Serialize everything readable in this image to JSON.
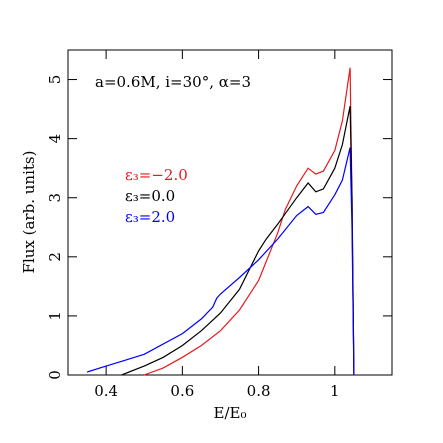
{
  "chart_data": {
    "type": "line",
    "annotation": "a=0.6M, i=30°, α=3",
    "x_label": "E/E₀",
    "y_label": "Flux (arb. units)",
    "xlim": [
      0.3,
      1.15
    ],
    "xticks": [
      0.4,
      0.6,
      0.8,
      1
    ],
    "ylim": [
      0,
      5.5
    ],
    "yticks": [
      0,
      1,
      2,
      3,
      4,
      5
    ],
    "series": [
      {
        "name": "ε₃=−2.0",
        "color": "#e41a1c",
        "x": [
          0.5,
          0.55,
          0.6,
          0.65,
          0.7,
          0.75,
          0.8,
          0.85,
          0.87,
          0.9,
          0.93,
          0.95,
          0.97,
          1.0,
          1.02,
          1.04,
          1.045,
          1.05
        ],
        "values": [
          0,
          0.12,
          0.3,
          0.5,
          0.75,
          1.1,
          1.6,
          2.4,
          2.8,
          3.2,
          3.5,
          3.4,
          3.45,
          3.8,
          4.3,
          5.2,
          3.0,
          0
        ]
      },
      {
        "name": "ε₃=0.0",
        "color": "#000000",
        "x": [
          0.44,
          0.5,
          0.55,
          0.6,
          0.65,
          0.7,
          0.75,
          0.8,
          0.82,
          0.85,
          0.9,
          0.93,
          0.95,
          0.97,
          1.0,
          1.02,
          1.04,
          1.045,
          1.05
        ],
        "values": [
          0,
          0.15,
          0.3,
          0.5,
          0.75,
          1.05,
          1.45,
          2.1,
          2.3,
          2.55,
          3.0,
          3.25,
          3.1,
          3.15,
          3.5,
          3.9,
          4.55,
          3.0,
          0
        ]
      },
      {
        "name": "ε₃=2.0",
        "color": "#0000ff",
        "x": [
          0.35,
          0.4,
          0.5,
          0.6,
          0.65,
          0.68,
          0.69,
          0.7,
          0.75,
          0.8,
          0.85,
          0.9,
          0.93,
          0.95,
          0.97,
          1.0,
          1.02,
          1.04,
          1.045,
          1.05
        ],
        "values": [
          0.05,
          0.15,
          0.35,
          0.7,
          0.95,
          1.15,
          1.3,
          1.37,
          1.65,
          1.95,
          2.3,
          2.7,
          2.85,
          2.72,
          2.75,
          3.05,
          3.3,
          3.85,
          2.5,
          0
        ]
      }
    ]
  }
}
